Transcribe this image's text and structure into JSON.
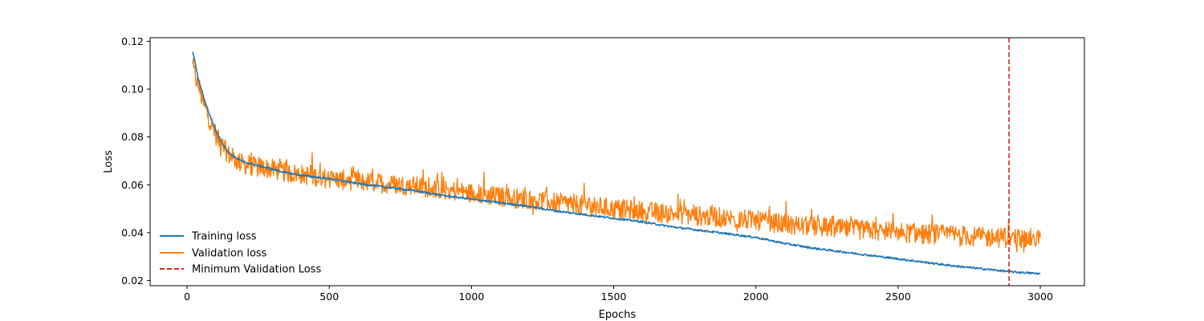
{
  "chart_data": {
    "type": "line",
    "title": "",
    "xlabel": "Epochs",
    "ylabel": "Loss",
    "xlim": [
      -130,
      3155
    ],
    "ylim": [
      0.0178,
      0.1215
    ],
    "x_ticks": [
      0,
      500,
      1000,
      1500,
      2000,
      2500,
      3000
    ],
    "x_tick_labels": [
      "0",
      "500",
      "1000",
      "1500",
      "2000",
      "2500",
      "3000"
    ],
    "y_ticks": [
      0.02,
      0.04,
      0.06,
      0.08,
      0.1,
      0.12
    ],
    "y_tick_labels": [
      "0.02",
      "0.04",
      "0.06",
      "0.08",
      "0.10",
      "0.12"
    ],
    "grid": false,
    "legend_position": "lower-left",
    "vline": {
      "x": 2890,
      "name": "Minimum Validation Loss",
      "color": "#d62728",
      "style": "dashed"
    },
    "series": [
      {
        "name": "Training loss",
        "color": "#1f77b4",
        "x": [
          20,
          40,
          60,
          80,
          100,
          125,
          150,
          175,
          200,
          250,
          300,
          350,
          400,
          500,
          600,
          700,
          800,
          900,
          1000,
          1100,
          1200,
          1300,
          1400,
          1500,
          1600,
          1700,
          1800,
          1900,
          2000,
          2100,
          2200,
          2300,
          2400,
          2500,
          2600,
          2700,
          2800,
          2900,
          3000
        ],
        "y": [
          0.116,
          0.104,
          0.096,
          0.089,
          0.083,
          0.077,
          0.073,
          0.071,
          0.0695,
          0.068,
          0.0665,
          0.065,
          0.064,
          0.0625,
          0.0605,
          0.059,
          0.0575,
          0.0555,
          0.054,
          0.0525,
          0.051,
          0.049,
          0.0475,
          0.046,
          0.0445,
          0.0425,
          0.041,
          0.0395,
          0.038,
          0.0355,
          0.0335,
          0.032,
          0.0305,
          0.029,
          0.0275,
          0.026,
          0.0248,
          0.0236,
          0.0228
        ]
      },
      {
        "name": "Validation loss",
        "color": "#ff7f0e",
        "x": [
          20,
          40,
          60,
          80,
          100,
          125,
          150,
          175,
          200,
          250,
          300,
          350,
          400,
          500,
          600,
          700,
          800,
          900,
          1000,
          1100,
          1200,
          1300,
          1400,
          1500,
          1600,
          1700,
          1800,
          1900,
          2000,
          2100,
          2200,
          2300,
          2400,
          2500,
          2600,
          2700,
          2800,
          2900,
          3000
        ],
        "y": [
          0.109,
          0.101,
          0.093,
          0.087,
          0.081,
          0.076,
          0.072,
          0.07,
          0.0685,
          0.0675,
          0.0665,
          0.065,
          0.0645,
          0.0625,
          0.0615,
          0.0605,
          0.0595,
          0.058,
          0.0565,
          0.055,
          0.054,
          0.0525,
          0.0515,
          0.05,
          0.049,
          0.048,
          0.047,
          0.046,
          0.045,
          0.0435,
          0.0425,
          0.0415,
          0.041,
          0.04,
          0.0395,
          0.039,
          0.038,
          0.0378,
          0.0375
        ]
      }
    ]
  }
}
